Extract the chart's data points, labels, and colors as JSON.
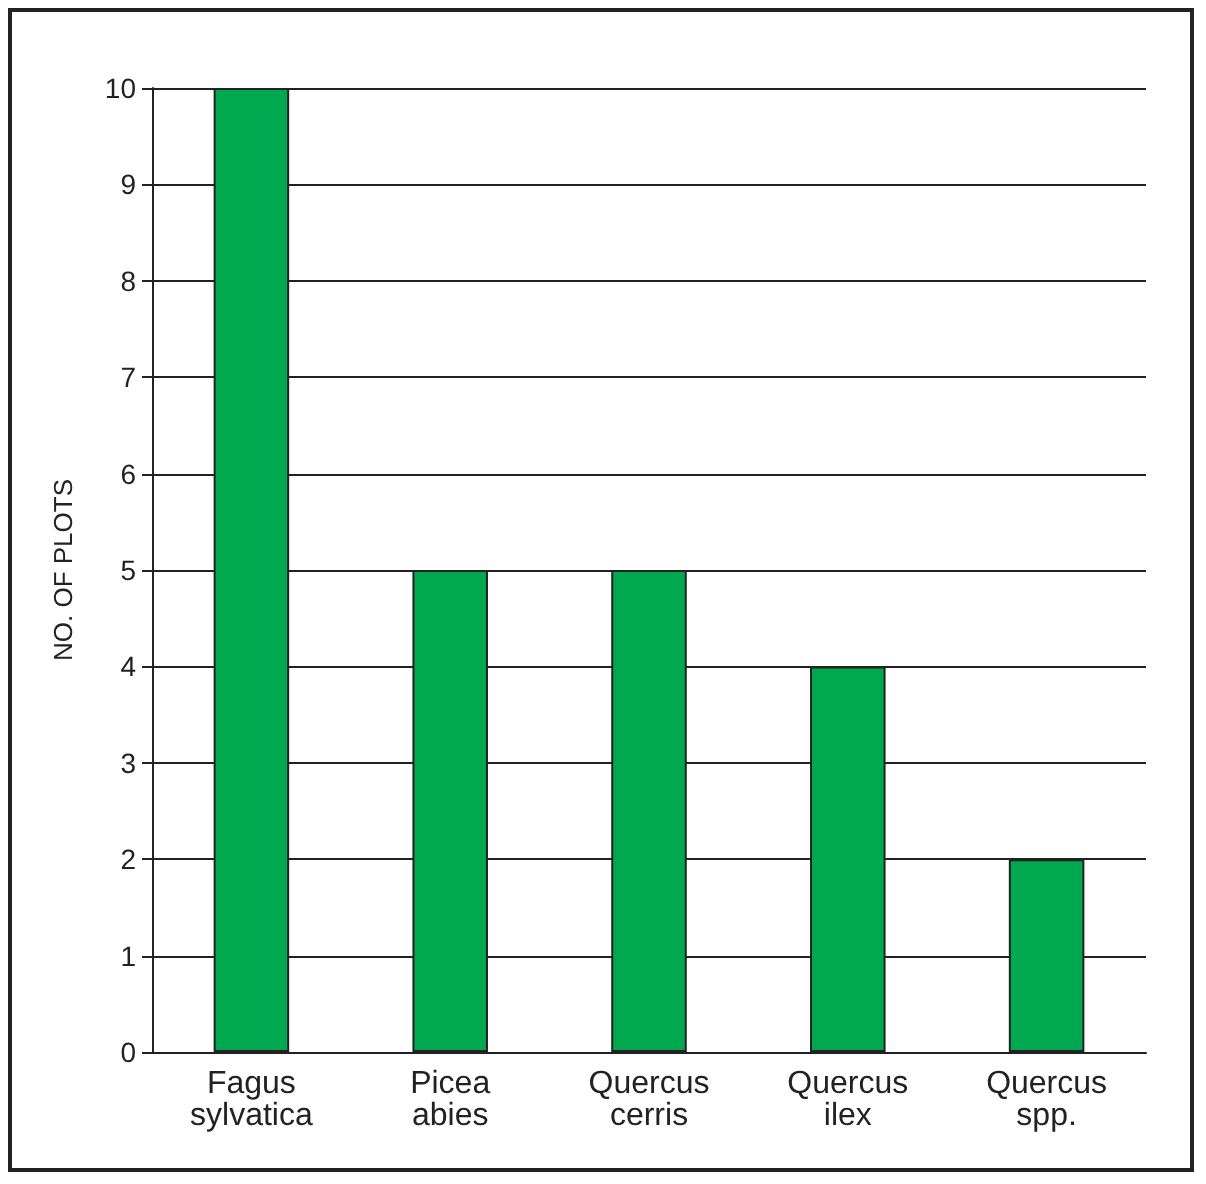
{
  "chart_data": {
    "type": "bar",
    "ylabel": "NO. OF PLOTS",
    "categories": [
      "Fagus\nsylvatica",
      "Picea\nabies",
      "Quercus\ncerris",
      "Quercus\nilex",
      "Quercus\nspp."
    ],
    "values": [
      10,
      5,
      5,
      4,
      2
    ],
    "color": "#00a94f",
    "ylim": [
      0,
      10
    ],
    "yticks": [
      0,
      1,
      2,
      3,
      4,
      5,
      6,
      7,
      8,
      9,
      10
    ],
    "grid": "y"
  }
}
